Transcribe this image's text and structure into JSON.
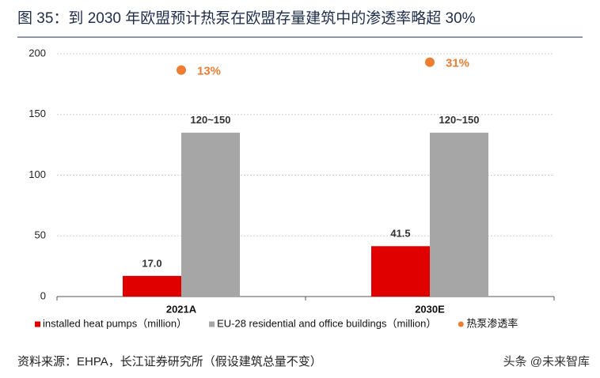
{
  "chart_data": {
    "type": "bar",
    "title": "图 35：到 2030 年欧盟预计热泵在欧盟存量建筑中的渗透率略超 30%",
    "categories": [
      "2021A",
      "2030E"
    ],
    "series": [
      {
        "name": "installed heat pumps（million）",
        "color": "#e00000",
        "values": [
          17.0,
          41.5
        ],
        "value_labels": [
          "17.0",
          "41.5"
        ]
      },
      {
        "name": "EU-28 residential and office buildings（million）",
        "color": "#a6a6a6",
        "values": [
          135,
          135
        ],
        "value_labels": [
          "120~150",
          "120~150"
        ]
      },
      {
        "name": "热泵渗透率",
        "color": "#ed7d31",
        "type": "scatter",
        "axis": "y2",
        "values": [
          13,
          31
        ],
        "value_labels": [
          "13%",
          "31%"
        ]
      }
    ],
    "ylim": [
      0,
      200
    ],
    "yticks": [
      0,
      50,
      100,
      150,
      200
    ],
    "y2lim": [
      -500,
      50
    ],
    "grid": true,
    "legend": "bottom",
    "source": "资料来源：EHPA，长江证券研究所（假设建筑总量不变）",
    "watermark": "头条 @未来智库"
  }
}
